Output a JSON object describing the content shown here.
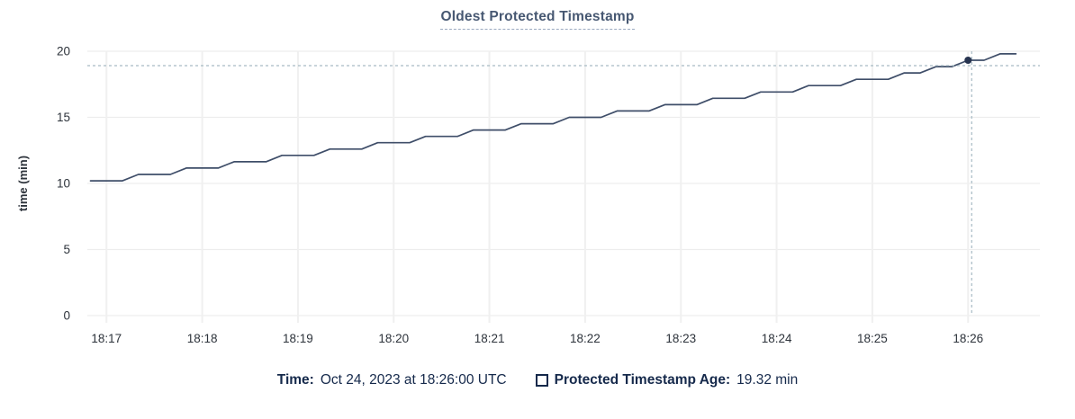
{
  "title": "Oldest Protected Timestamp",
  "footer": {
    "time_label": "Time:",
    "time_value": "Oct 24, 2023 at 18:26:00 UTC",
    "legend": {
      "label": "Protected Timestamp Age:",
      "value": "19.32 min",
      "checked": false
    }
  },
  "colors": {
    "title": "#475872",
    "title_underline": "#9aa9c0",
    "line": "#3f4e69",
    "grid_horizontal": "#ededed",
    "grid_vertical": "#f0f0f0",
    "axis_text": "#2d333b",
    "crosshair": "#a6bac3",
    "hover_dot": "#273450",
    "footer_text": "#15294b"
  },
  "chart_data": {
    "type": "line",
    "title": "Oldest Protected Timestamp",
    "xlabel": "",
    "ylabel": "time (min)",
    "ylim": [
      0,
      20
    ],
    "yticks": [
      0,
      5,
      10,
      15,
      20
    ],
    "xticks": [
      "18:17",
      "18:18",
      "18:19",
      "18:20",
      "18:21",
      "18:22",
      "18:23",
      "18:24",
      "18:25",
      "18:26"
    ],
    "x_domain": [
      "18:16:48",
      "18:26:45"
    ],
    "grid": true,
    "legend_position": "bottom",
    "series": [
      {
        "name": "Protected Timestamp Age",
        "unit": "min",
        "start": "18:16:50",
        "interval_seconds": 10,
        "values": [
          10.2,
          10.2,
          10.2,
          10.68,
          10.68,
          10.68,
          11.16,
          11.16,
          11.16,
          11.64,
          11.64,
          11.64,
          12.12,
          12.12,
          12.12,
          12.6,
          12.6,
          12.6,
          13.08,
          13.08,
          13.08,
          13.56,
          13.56,
          13.56,
          14.04,
          14.04,
          14.04,
          14.52,
          14.52,
          14.52,
          15,
          15,
          15,
          15.48,
          15.48,
          15.48,
          15.96,
          15.96,
          15.96,
          16.44,
          16.44,
          16.44,
          16.92,
          16.92,
          16.92,
          17.4,
          17.4,
          17.4,
          17.88,
          17.88,
          17.88,
          18.36,
          18.36,
          18.84,
          18.84,
          19.32,
          19.32,
          19.8,
          19.8
        ]
      }
    ],
    "hover_point": {
      "x": "18:26:00",
      "y": 19.32,
      "time_full": "Oct 24, 2023 at 18:26:00 UTC"
    }
  }
}
